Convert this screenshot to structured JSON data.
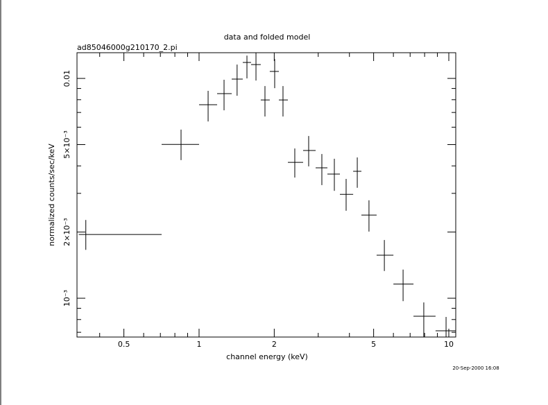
{
  "chart_data": {
    "type": "errorbar",
    "title": "data and folded model",
    "subtitle": "ad85046000g210170_2.pi",
    "x_label": "channel energy (keV)",
    "y_label": "normalized counts/sec/keV",
    "timestamp": "20-Sep-2000 16:08",
    "log_x": true,
    "log_y": true,
    "color": "#000000",
    "xlim": [
      0.3245,
      10.66
    ],
    "ylim": [
      0.000666,
      0.01309
    ],
    "xticks": [
      0.5,
      1,
      2,
      5,
      10
    ],
    "xminor_ticks": [
      0.4,
      0.6,
      0.7,
      0.8,
      0.9,
      3,
      4,
      6,
      7,
      8,
      9
    ],
    "yticks": [
      {
        "value": 0.001,
        "label": "10⁻³"
      },
      {
        "value": 0.002,
        "label": "2×10⁻³"
      },
      {
        "value": 0.005,
        "label": "5×10⁻³"
      },
      0.01
    ],
    "yminor_ticks": [
      0.0007,
      0.0008,
      0.0009,
      0.003,
      0.004,
      0.006,
      0.007,
      0.008,
      0.009
    ],
    "x": [
      0.352,
      0.847,
      1.087,
      1.259,
      1.42,
      1.555,
      1.69,
      1.836,
      2.008,
      2.168,
      2.417,
      2.747,
      3.102,
      3.481,
      3.88,
      4.3,
      4.79,
      5.52,
      6.56,
      7.94,
      9.75
    ],
    "x_low": [
      0.33,
      0.708,
      1.0,
      1.181,
      1.351,
      1.496,
      1.615,
      1.766,
      1.919,
      2.087,
      2.268,
      2.61,
      2.929,
      3.265,
      3.664,
      4.14,
      4.467,
      5.14,
      6.0,
      7.22,
      8.85
    ],
    "x_high": [
      0.708,
      1.0,
      1.181,
      1.351,
      1.496,
      1.615,
      1.766,
      1.919,
      2.087,
      2.268,
      2.61,
      2.929,
      3.265,
      3.664,
      4.14,
      4.467,
      5.14,
      6.0,
      7.22,
      8.85,
      10.7
    ],
    "y": [
      0.00195,
      0.00501,
      0.00759,
      0.00853,
      0.00993,
      0.01182,
      0.01156,
      0.00798,
      0.01076,
      0.00798,
      0.00415,
      0.0047,
      0.00392,
      0.00367,
      0.00297,
      0.00378,
      0.00239,
      0.00157,
      0.00116,
      0.000828,
      0.000711
    ],
    "y_low": [
      0.00166,
      0.00425,
      0.00637,
      0.00716,
      0.00834,
      0.01,
      0.00978,
      0.00671,
      0.00903,
      0.00671,
      0.00354,
      0.00398,
      0.00327,
      0.00308,
      0.0025,
      0.00318,
      0.00201,
      0.00133,
      0.00097,
      0.00065,
      0.0006
    ],
    "y_high": [
      0.00227,
      0.00585,
      0.00878,
      0.00986,
      0.01156,
      0.0127,
      0.01306,
      0.00923,
      0.01225,
      0.00923,
      0.0048,
      0.00547,
      0.00453,
      0.00431,
      0.00349,
      0.00437,
      0.00279,
      0.00184,
      0.00135,
      0.000957,
      0.000822
    ]
  }
}
